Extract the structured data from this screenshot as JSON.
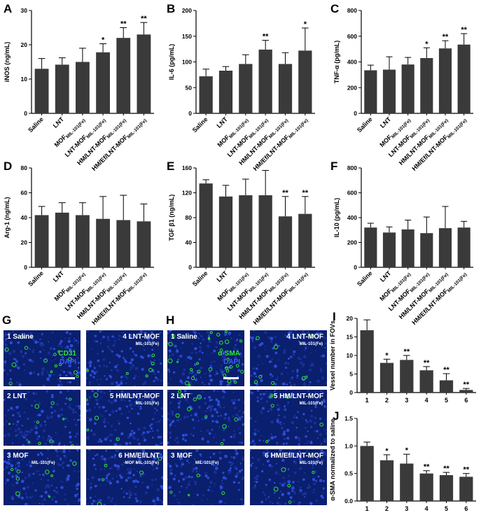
{
  "chart_data": [
    {
      "panel": "A",
      "type": "bar",
      "ylabel": "iNOS (ng/mL)",
      "ylim": [
        0,
        30
      ],
      "yticks": [
        0,
        10,
        20,
        30
      ],
      "categories": [
        "Saline",
        "LNT",
        "MOF_MIL-101(Fe)",
        "LNT-MOF_MIL-101(Fe)",
        "HM/LNT-MOF_MIL-101(Fe)",
        "HM/Ef/LNT-MOF_MIL-101(Fe)"
      ],
      "values": [
        13,
        14.2,
        15,
        17.8,
        22,
        23
      ],
      "errors": [
        3,
        2,
        4,
        2.5,
        3,
        3.5
      ],
      "significance": [
        "",
        "",
        "",
        "*",
        "**",
        "**"
      ]
    },
    {
      "panel": "B",
      "type": "bar",
      "ylabel": "IL-6 (pg/mL)",
      "ylim": [
        0,
        200
      ],
      "yticks": [
        0,
        50,
        100,
        150,
        200
      ],
      "categories": [
        "Saline",
        "LNT",
        "MOF_MIL-101(Fe)",
        "LNT-MOF_MIL-101(Fe)",
        "HM/LNT-MOF_MIL-101(Fe)",
        "HM/Ef/LNT-MOF_MIL-101(Fe)"
      ],
      "values": [
        72,
        83,
        96,
        124,
        96,
        122
      ],
      "errors": [
        14,
        8,
        18,
        18,
        22,
        44
      ],
      "significance": [
        "",
        "",
        "",
        "**",
        "",
        "*"
      ]
    },
    {
      "panel": "C",
      "type": "bar",
      "ylabel": "TNF-α (pg/mL)",
      "ylim": [
        0,
        800
      ],
      "yticks": [
        0,
        200,
        400,
        600,
        800
      ],
      "categories": [
        "Saline",
        "LNT",
        "MOF_MIL-101(Fe)",
        "LNT-MOF_MIL-101(Fe)",
        "HM/LNT-MOF_MIL-101(Fe)",
        "HM/Ef/LNT-MOF_MIL-101(Fe)"
      ],
      "values": [
        335,
        340,
        380,
        430,
        505,
        535
      ],
      "errors": [
        40,
        100,
        55,
        80,
        60,
        85
      ],
      "significance": [
        "",
        "",
        "",
        "*",
        "**",
        "**"
      ]
    },
    {
      "panel": "D",
      "type": "bar",
      "ylabel": "Arg-1 (ng/mL)",
      "ylim": [
        0,
        80
      ],
      "yticks": [
        0,
        20,
        40,
        60,
        80
      ],
      "categories": [
        "Saline",
        "LNT",
        "MOF_MIL-101(Fe)",
        "LNT-MOF_MIL-101(Fe)",
        "HM/LNT-MOF_MIL-101(Fe)",
        "HM/Ef/LNT-MOF_MIL-101(Fe)"
      ],
      "values": [
        42,
        44,
        42,
        39,
        38,
        37
      ],
      "errors": [
        7,
        8,
        10,
        18,
        20,
        14
      ],
      "significance": [
        "",
        "",
        "",
        "",
        "",
        ""
      ]
    },
    {
      "panel": "E",
      "type": "bar",
      "ylabel": "TGF β1 (ng/mL)",
      "ylim": [
        0,
        160
      ],
      "yticks": [
        0,
        40,
        80,
        120,
        160
      ],
      "categories": [
        "Saline",
        "LNT",
        "MOF_MIL-101(Fe)",
        "LNT-MOF_MIL-101(Fe)",
        "HM/LNT-MOF_MIL-101(Fe)",
        "HM/Ef/LNT-MOF_MIL-101(Fe)"
      ],
      "values": [
        135,
        114,
        116,
        116,
        82,
        86
      ],
      "errors": [
        6,
        18,
        26,
        40,
        32,
        28
      ],
      "significance": [
        "",
        "",
        "",
        "",
        "**",
        "**"
      ]
    },
    {
      "panel": "F",
      "type": "bar",
      "ylabel": "IL-10 (pg/mL)",
      "ylim": [
        0,
        800
      ],
      "yticks": [
        0,
        200,
        400,
        600,
        800
      ],
      "categories": [
        "Saline",
        "LNT",
        "MOF_MIL-101(Fe)",
        "LNT-MOF_MIL-101(Fe)",
        "HM/LNT-MOF_MIL-101(Fe)",
        "HM/Ef/LNT-MOF_MIL-101(Fe)"
      ],
      "values": [
        320,
        280,
        305,
        275,
        315,
        320
      ],
      "errors": [
        35,
        45,
        75,
        130,
        175,
        50
      ],
      "significance": [
        "",
        "",
        "",
        "",
        "",
        ""
      ]
    },
    {
      "panel": "I",
      "type": "bar",
      "ylabel": "Vessel number in FOVs",
      "ylim": [
        0,
        20
      ],
      "yticks": [
        0,
        5,
        10,
        15,
        20
      ],
      "categories": [
        "1",
        "2",
        "3",
        "4",
        "5",
        "6"
      ],
      "values": [
        16.8,
        8,
        8.8,
        6,
        3.3,
        0.7
      ],
      "errors": [
        2.8,
        1,
        1.2,
        1,
        1.8,
        0.4
      ],
      "significance": [
        "",
        "*",
        "**",
        "**",
        "**",
        "**"
      ]
    },
    {
      "panel": "J",
      "type": "bar",
      "ylabel": "α-SMA normalized to saline",
      "ylim": [
        0,
        1.5
      ],
      "yticks": [
        0.0,
        0.5,
        1.0,
        1.5
      ],
      "categories": [
        "1",
        "2",
        "3",
        "4",
        "5",
        "6"
      ],
      "values": [
        1.0,
        0.74,
        0.68,
        0.5,
        0.47,
        0.44
      ],
      "errors": [
        0.07,
        0.1,
        0.17,
        0.05,
        0.05,
        0.06
      ],
      "significance": [
        "",
        "*",
        "*",
        "**",
        "**",
        "**"
      ]
    }
  ],
  "micrographs": {
    "G": {
      "stain_green": "CD31",
      "stain_blue": "DAPI",
      "green_color": "#2ee82e",
      "tiles": [
        {
          "num": "1",
          "label": "Saline",
          "sub": ""
        },
        {
          "num": "4",
          "label": "LNT-MOF",
          "sub": "MIL-101(Fe)"
        },
        {
          "num": "2",
          "label": "LNT",
          "sub": ""
        },
        {
          "num": "5",
          "label": "HM/LNT-MOF",
          "sub": "MIL-101(Fe)"
        },
        {
          "num": "3",
          "label": "MOF",
          "sub": "MIL-101(Fe)"
        },
        {
          "num": "6",
          "label": "HM/Ef/LNT",
          "sub": "-MOF MIL-101(Fe)"
        }
      ]
    },
    "H": {
      "stain_green": "α-SMA",
      "stain_blue": "DAPI",
      "green_color": "#2ee82e",
      "tiles": [
        {
          "num": "1",
          "label": "Saline",
          "sub": ""
        },
        {
          "num": "4",
          "label": "LNT-MOF",
          "sub": "MIL-101(Fe)"
        },
        {
          "num": "2",
          "label": "LNT",
          "sub": ""
        },
        {
          "num": "5",
          "label": "HM/LNT-MOF",
          "sub": "MIL-101(Fe)"
        },
        {
          "num": "3",
          "label": "MOF",
          "sub": "MIL-101(Fe)"
        },
        {
          "num": "6",
          "label": "HM/Ef/LNT-MOF",
          "sub": "MIL-101(Fe)"
        }
      ]
    }
  },
  "panel_letters": {
    "A": "A",
    "B": "B",
    "C": "C",
    "D": "D",
    "E": "E",
    "F": "F",
    "G": "G",
    "H": "H",
    "I": "I",
    "J": "J"
  },
  "colors": {
    "bar": "#3a3a3a",
    "axis": "#000000",
    "tissue": "#0a1f6e",
    "green": "#2ee82e"
  }
}
